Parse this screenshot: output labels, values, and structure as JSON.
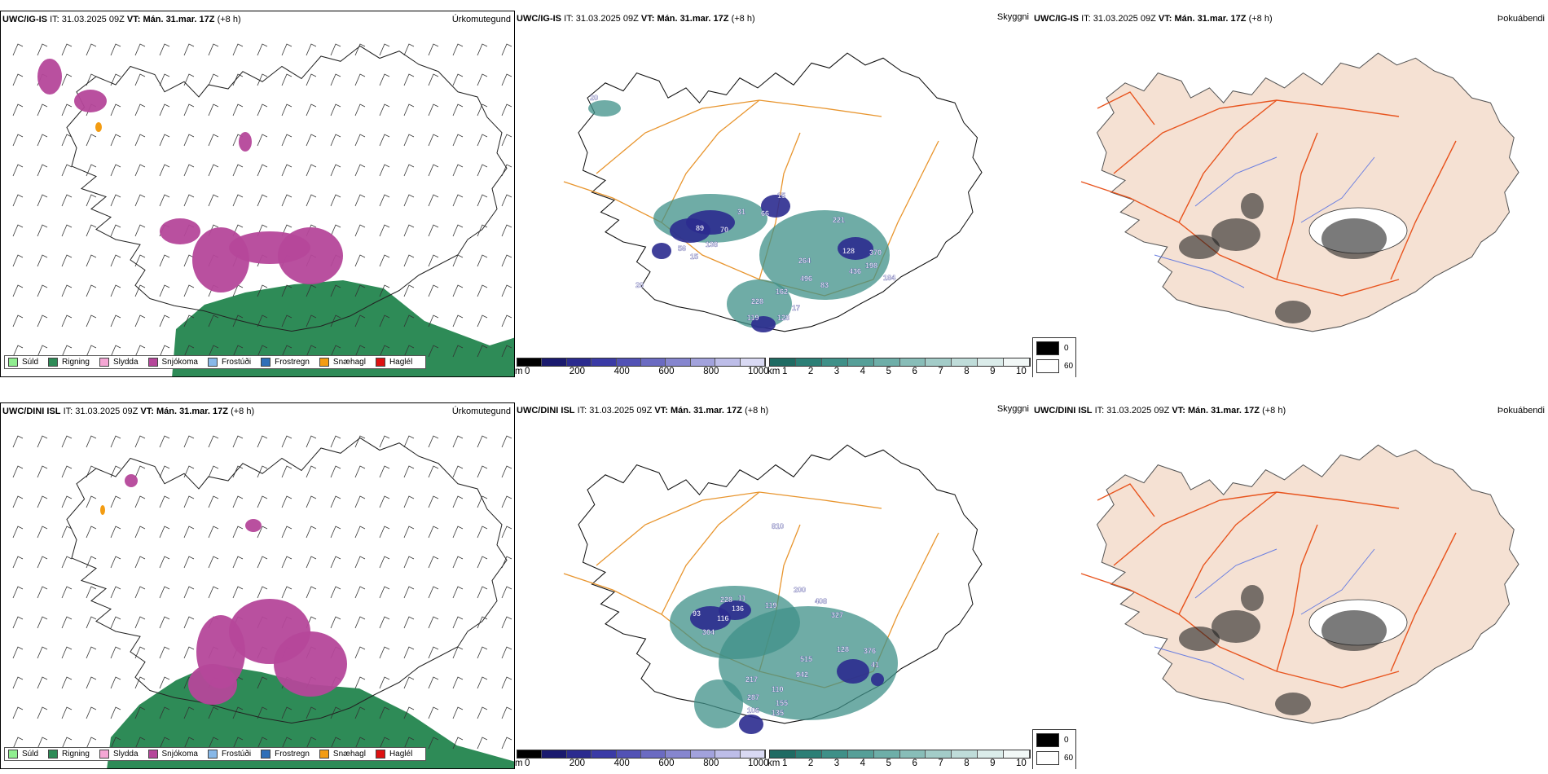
{
  "rows": [
    {
      "precip": {
        "model": "UWC/IG-IS",
        "it_label": "IT:",
        "it_value": "31.03.2025 09Z",
        "vt_label": "VT:",
        "vt_value": "Mán. 31.mar. 17Z",
        "lead": "(+8 h)",
        "right": "Úrkomutegund"
      },
      "vis": {
        "model": "UWC/IG-IS",
        "it_label": "IT:",
        "it_value": "31.03.2025 09Z",
        "vt_label": "VT:",
        "vt_value": "Mán. 31.mar. 17Z",
        "lead": "(+8 h)",
        "right": "Skyggni",
        "labels": [
          "20",
          "89",
          "70",
          "31",
          "66",
          "15",
          "138",
          "56",
          "15",
          "20",
          "221",
          "128",
          "370",
          "264",
          "198",
          "436",
          "184",
          "496",
          "83",
          "162",
          "228",
          "17",
          "119",
          "128"
        ]
      },
      "fog": {
        "model": "UWC/IG-IS",
        "it_label": "IT:",
        "it_value": "31.03.2025 09Z",
        "vt_label": "VT:",
        "vt_value": "Mán. 31.mar. 17Z",
        "lead": "(+8 h)",
        "right": "Þokuábendi"
      }
    },
    {
      "precip": {
        "model": "UWC/DINI ISL",
        "it_label": "IT:",
        "it_value": "31.03.2025 09Z",
        "vt_label": "VT:",
        "vt_value": "Mán. 31.mar. 17Z",
        "lead": "(+8 h)",
        "right": "Úrkomutegund"
      },
      "vis": {
        "model": "UWC/DINI ISL",
        "it_label": "IT:",
        "it_value": "31.03.2025 09Z",
        "vt_label": "VT:",
        "vt_value": "Mán. 31.mar. 17Z",
        "lead": "(+8 h)",
        "right": "Skyggni",
        "labels": [
          "810",
          "200",
          "228",
          "11",
          "119",
          "408",
          "136",
          "93",
          "116",
          "327",
          "304",
          "128",
          "376",
          "515",
          "41",
          "942",
          "217",
          "110",
          "287",
          "155",
          "106",
          "135"
        ]
      },
      "fog": {
        "model": "UWC/DINI ISL",
        "it_label": "IT:",
        "it_value": "31.03.2025 09Z",
        "vt_label": "VT:",
        "vt_value": "Mán. 31.mar. 17Z",
        "lead": "(+8 h)",
        "right": "Þokuábendi"
      }
    }
  ],
  "precip_legend": [
    {
      "label": "Súld",
      "color": "#90ee90"
    },
    {
      "label": "Rigning",
      "color": "#2e8b57"
    },
    {
      "label": "Slydda",
      "color": "#f4a6d4"
    },
    {
      "label": "Snjókoma",
      "color": "#b5479a"
    },
    {
      "label": "Frostúði",
      "color": "#87b8e8"
    },
    {
      "label": "Frostregn",
      "color": "#2f6fb8"
    },
    {
      "label": "Snæhagl",
      "color": "#f39c12"
    },
    {
      "label": "Haglél",
      "color": "#dd1111"
    }
  ],
  "height_scale": {
    "unit": "m",
    "ticks": [
      "0",
      "200",
      "400",
      "600",
      "800",
      "1000"
    ],
    "colors": [
      "#000000",
      "#1a1a6e",
      "#2b2b8f",
      "#3b3ba6",
      "#5252b5",
      "#6b6bc2",
      "#8686cf",
      "#a2a2dc",
      "#bdbde8",
      "#d9d9f3"
    ]
  },
  "vis_scale": {
    "unit": "km",
    "ticks": [
      "1",
      "2",
      "3",
      "4",
      "5",
      "6",
      "7",
      "8",
      "9",
      "10"
    ],
    "colors": [
      "#1f6b63",
      "#2c7f76",
      "#3f9088",
      "#569f98",
      "#6eaea8",
      "#88bdb8",
      "#a3ccc8",
      "#bfdcd9",
      "#dbecea",
      "#f2f8f7"
    ]
  },
  "fog_legend": [
    {
      "label": "0",
      "color": "#000000"
    },
    {
      "label": "60",
      "color": "#ffffff"
    }
  ],
  "colors": {
    "land": "#f5e1d3",
    "road": "#e8541e",
    "road_orange": "#e8952e",
    "river": "#6b7fe0",
    "snow": "#b5479a",
    "rain": "#2e8b57"
  }
}
